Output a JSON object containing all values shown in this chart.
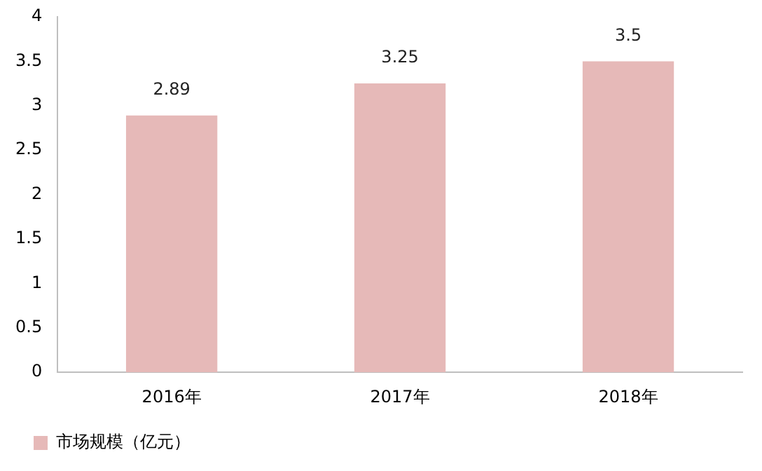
{
  "chart_data": {
    "type": "bar",
    "categories": [
      "2016年",
      "2017年",
      "2018年"
    ],
    "series": [
      {
        "name": "市场规模（亿元）",
        "color": "#e6b9b8",
        "values": [
          2.89,
          3.25,
          3.5
        ]
      }
    ],
    "ylim": [
      0,
      4
    ],
    "yticks": [
      0,
      0.5,
      1,
      1.5,
      2,
      2.5,
      3,
      3.5,
      4
    ],
    "grid": false,
    "legend": "bottom",
    "data_labels": true
  }
}
